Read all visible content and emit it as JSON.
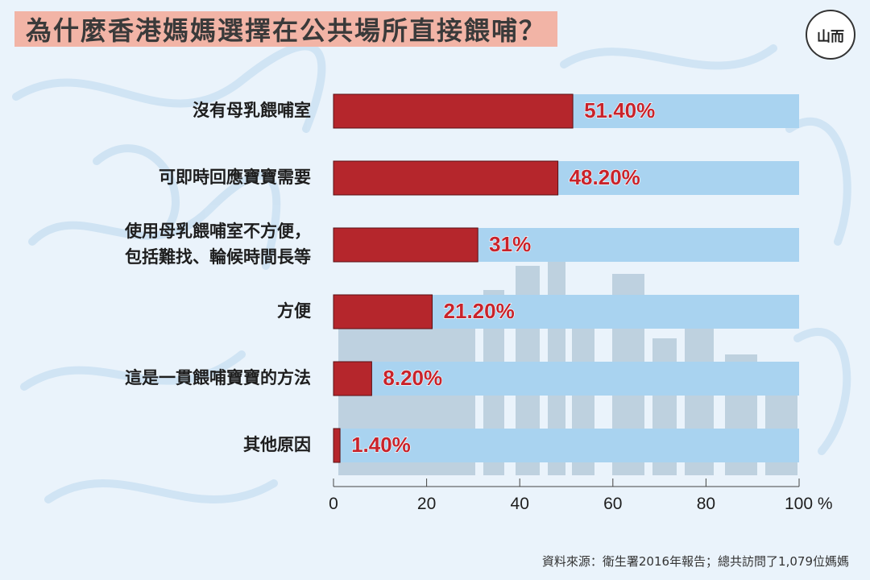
{
  "header": {
    "title": "為什麼香港媽媽選擇在公共場所直接餵哺？",
    "logo_text": "山而"
  },
  "footer": {
    "source": "資料來源：衛生署2016年報告；總共訪問了1,079位媽媽"
  },
  "colors": {
    "bar": "#b5262c",
    "value_label": "#c8232b",
    "row_band": "#a9d3f0",
    "background": "#eaf3fb",
    "title_band": "#f2b4a6"
  },
  "chart_data": {
    "type": "bar",
    "orientation": "horizontal",
    "categories": [
      [
        "沒有母乳餵哺室"
      ],
      [
        "可即時回應寶寶需要"
      ],
      [
        "使用母乳餵哺室不方便，",
        "包括難找、輪候時間長等"
      ],
      [
        "方便"
      ],
      [
        "這是一貫餵哺寶寶的方法"
      ],
      [
        "其他原因"
      ]
    ],
    "values": [
      51.4,
      48.2,
      31,
      21.2,
      8.2,
      1.4
    ],
    "value_labels": [
      "51.40%",
      "48.20%",
      "31%",
      "21.20%",
      "8.20%",
      "1.40%"
    ],
    "xlim": [
      0,
      100
    ],
    "xticks": [
      0,
      20,
      40,
      60,
      80,
      100
    ],
    "xtick_labels": [
      "0",
      "20",
      "40",
      "60",
      "80",
      "100 %"
    ],
    "grid": false
  }
}
